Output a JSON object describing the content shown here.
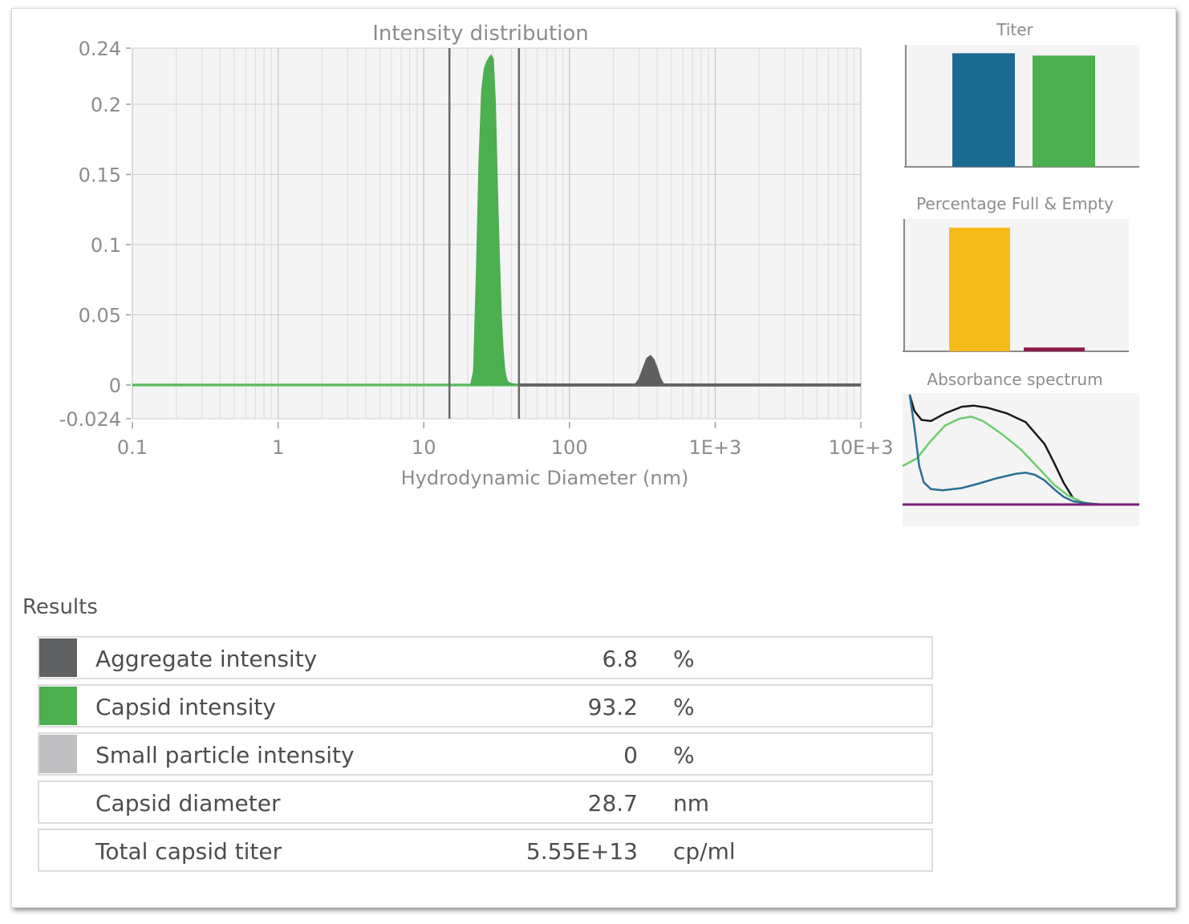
{
  "chart_data": [
    {
      "type": "area",
      "title": "Intensity distribution",
      "xlabel": "Hydrodynamic Diameter (nm)",
      "ylabel": "",
      "xscale": "log",
      "xlim": [
        0.1,
        10000
      ],
      "ylim": [
        -0.024,
        0.24
      ],
      "x_tick_labels": [
        "0.1",
        "1",
        "10",
        "100",
        "1E+3",
        "10E+3"
      ],
      "x_tick_values": [
        0.1,
        1,
        10,
        100,
        1000,
        10000
      ],
      "y_ticks": [
        0.24,
        0.2,
        0.15,
        0.1,
        0.05,
        0,
        -0.024
      ],
      "y_tick_labels": [
        "0.24",
        "0.2",
        "0.15",
        "0.1",
        "0.05",
        "0",
        "-0.024"
      ],
      "grid": true,
      "boundary_lines_x": [
        15,
        45
      ],
      "series": [
        {
          "color": "#4caf50",
          "x": [
            0.1,
            15,
            21,
            22,
            23,
            24,
            25,
            26,
            27,
            28,
            29,
            30,
            31,
            32,
            33,
            34,
            35,
            36,
            37,
            38,
            40,
            45
          ],
          "y": [
            0,
            0,
            0,
            0.01,
            0.08,
            0.16,
            0.21,
            0.225,
            0.23,
            0.233,
            0.235,
            0.232,
            0.2,
            0.14,
            0.09,
            0.05,
            0.025,
            0.01,
            0.004,
            0.002,
            0.001,
            0
          ]
        },
        {
          "color": "#5f5f5f",
          "x": [
            45,
            280,
            300,
            320,
            340,
            360,
            380,
            400,
            420,
            440,
            480,
            10000
          ],
          "y": [
            0,
            0,
            0.004,
            0.012,
            0.019,
            0.021,
            0.018,
            0.012,
            0.005,
            0.001,
            0,
            0
          ]
        }
      ]
    },
    {
      "type": "bar",
      "title": "Titer",
      "categories": [
        "",
        ""
      ],
      "values": [
        0.97,
        0.95
      ],
      "colors": [
        "#1b6a92",
        "#4caf50"
      ],
      "ylim": [
        0,
        1
      ]
    },
    {
      "type": "bar",
      "title": "Percentage Full & Empty",
      "categories": [
        "",
        ""
      ],
      "values": [
        0.97,
        0.03
      ],
      "colors": [
        "#f5bb1a",
        "#8b1a4a"
      ],
      "ylim": [
        0,
        1
      ]
    },
    {
      "type": "line",
      "title": "Absorbance spectrum",
      "xlim": [
        0,
        1
      ],
      "ylim": [
        0,
        1
      ],
      "series": [
        {
          "color": "#1a1a1a",
          "x": [
            0.03,
            0.05,
            0.08,
            0.12,
            0.18,
            0.25,
            0.3,
            0.36,
            0.44,
            0.52,
            0.6,
            0.64,
            0.68,
            0.72,
            0.76,
            0.82,
            0.9,
            1.0
          ],
          "y": [
            1.0,
            0.85,
            0.77,
            0.76,
            0.83,
            0.89,
            0.9,
            0.88,
            0.83,
            0.75,
            0.55,
            0.38,
            0.2,
            0.06,
            0.02,
            0.0,
            0.0,
            0.0
          ]
        },
        {
          "color": "#6ccf6c",
          "x": [
            0.0,
            0.06,
            0.12,
            0.18,
            0.24,
            0.29,
            0.34,
            0.42,
            0.5,
            0.58,
            0.64,
            0.7,
            0.76,
            0.82,
            0.9,
            1.0
          ],
          "y": [
            0.35,
            0.42,
            0.58,
            0.72,
            0.78,
            0.8,
            0.76,
            0.64,
            0.5,
            0.32,
            0.18,
            0.08,
            0.02,
            0.0,
            0.0,
            0.0
          ]
        },
        {
          "color": "#2a6f96",
          "x": [
            0.03,
            0.05,
            0.07,
            0.09,
            0.12,
            0.17,
            0.25,
            0.32,
            0.4,
            0.48,
            0.52,
            0.56,
            0.6,
            0.64,
            0.68,
            0.72,
            0.78,
            0.85,
            0.9,
            1.0
          ],
          "y": [
            1.0,
            0.7,
            0.35,
            0.2,
            0.14,
            0.13,
            0.15,
            0.19,
            0.24,
            0.28,
            0.29,
            0.27,
            0.22,
            0.14,
            0.07,
            0.03,
            0.01,
            0.0,
            0.0,
            0.0
          ]
        },
        {
          "color": "#7a1f7a",
          "x": [
            0.0,
            1.0
          ],
          "y": [
            0.0,
            0.0
          ]
        }
      ]
    }
  ],
  "results": {
    "heading": "Results",
    "rows": [
      {
        "label": "Aggregate intensity",
        "value": "6.8",
        "unit": "%",
        "swatch": "#5f6163"
      },
      {
        "label": "Capsid intensity",
        "value": "93.2",
        "unit": "%",
        "swatch": "#4caf50"
      },
      {
        "label": "Small particle intensity",
        "value": "0",
        "unit": "%",
        "swatch": "#c0c0c2"
      },
      {
        "label": "Capsid diameter",
        "value": "28.7",
        "unit": "nm",
        "swatch": ""
      },
      {
        "label": "Total capsid titer",
        "value": "5.55E+13",
        "unit": "cp/ml",
        "swatch": ""
      }
    ]
  }
}
